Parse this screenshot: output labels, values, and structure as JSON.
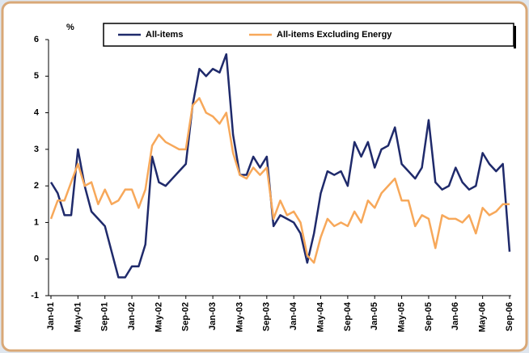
{
  "chart_data": {
    "type": "line",
    "y_label": "%",
    "categories": [
      "Jan-01",
      null,
      null,
      null,
      "May-01",
      null,
      null,
      null,
      "Sep-01",
      null,
      null,
      null,
      "Jan-02",
      null,
      null,
      null,
      "May-02",
      null,
      null,
      null,
      "Sep-02",
      null,
      null,
      null,
      "Jan-03",
      null,
      null,
      null,
      "May-03",
      null,
      null,
      null,
      "Sep-03",
      null,
      null,
      null,
      "Jan-04",
      null,
      null,
      null,
      "May-04",
      null,
      null,
      null,
      "Sep-04",
      null,
      null,
      null,
      "Jan-05",
      null,
      null,
      null,
      "May-05",
      null,
      null,
      null,
      "Sep-05",
      null,
      null,
      null,
      "Jan-06",
      null,
      null,
      null,
      "May-06",
      null,
      null,
      null,
      "Sep-06"
    ],
    "series": [
      {
        "name": "All-items",
        "color": "#1f2a6b",
        "values": [
          2.1,
          1.8,
          1.2,
          1.2,
          3.0,
          2.0,
          1.3,
          1.1,
          0.9,
          0.2,
          -0.5,
          -0.5,
          -0.2,
          -0.2,
          0.4,
          2.8,
          2.1,
          2.0,
          2.2,
          2.4,
          2.6,
          4.2,
          5.2,
          5.0,
          5.2,
          5.1,
          5.6,
          3.4,
          2.3,
          2.3,
          2.8,
          2.5,
          2.8,
          0.9,
          1.2,
          1.1,
          1.0,
          0.7,
          -0.1,
          0.7,
          1.8,
          2.4,
          2.3,
          2.4,
          2.0,
          3.2,
          2.8,
          3.2,
          2.5,
          3.0,
          3.1,
          3.6,
          2.6,
          2.4,
          2.2,
          2.5,
          3.8,
          2.1,
          1.9,
          2.0,
          2.5,
          2.1,
          1.9,
          2.0,
          2.9,
          2.6,
          2.4,
          2.6,
          0.2
        ]
      },
      {
        "name": "All-items Excluding Energy",
        "color": "#f7a85a",
        "values": [
          1.1,
          1.6,
          1.6,
          2.1,
          2.6,
          2.0,
          2.1,
          1.5,
          1.9,
          1.5,
          1.6,
          1.9,
          1.9,
          1.4,
          1.9,
          3.1,
          3.4,
          3.2,
          3.1,
          3.0,
          3.0,
          4.2,
          4.4,
          4.0,
          3.9,
          3.7,
          4.0,
          2.9,
          2.3,
          2.2,
          2.5,
          2.3,
          2.5,
          1.1,
          1.6,
          1.2,
          1.3,
          1.0,
          0.1,
          -0.1,
          0.6,
          1.1,
          0.9,
          1.0,
          0.9,
          1.3,
          1.0,
          1.6,
          1.4,
          1.8,
          2.0,
          2.2,
          1.6,
          1.6,
          0.9,
          1.2,
          1.1,
          0.3,
          1.2,
          1.1,
          1.1,
          1.0,
          1.2,
          0.7,
          1.4,
          1.2,
          1.3,
          1.5,
          1.5
        ]
      }
    ],
    "ylim": [
      -1,
      6
    ],
    "yticks": [
      -1,
      0,
      1,
      2,
      3,
      4,
      5,
      6
    ],
    "grid": false,
    "legend": "top-right"
  }
}
